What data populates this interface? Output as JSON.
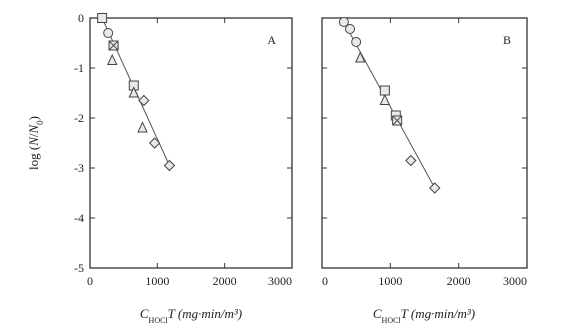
{
  "chart_data": [
    {
      "type": "scatter",
      "panel_label": "A",
      "xlabel": {
        "base": "C",
        "sub": "HOCl",
        "rest": "T (mg·min/m³)"
      },
      "ylabel": {
        "pre": "log (",
        "num": "N",
        "slash": "/",
        "den": "N",
        "sub": "0",
        "post": ")"
      },
      "xlim": [
        0,
        3000
      ],
      "ylim": [
        -5,
        0
      ],
      "xticks": [
        0,
        1000,
        2000,
        3000
      ],
      "yticks": [
        0,
        -1,
        -2,
        -3,
        -4,
        -5
      ],
      "xtick_labels": [
        "0",
        "1000",
        "2000",
        "3000"
      ],
      "ytick_labels": [
        "0",
        "-1",
        "-2",
        "-3",
        "-4",
        "-5"
      ],
      "series": [
        {
          "marker": "square",
          "points": [
            [
              180,
              0.0
            ],
            [
              350,
              -0.55
            ],
            [
              650,
              -1.35
            ]
          ]
        },
        {
          "marker": "circle",
          "points": [
            [
              270,
              -0.3
            ],
            [
              350,
              -0.55
            ]
          ]
        },
        {
          "marker": "cross-square",
          "points": [
            [
              350,
              -0.55
            ]
          ]
        },
        {
          "marker": "triangle",
          "points": [
            [
              330,
              -0.85
            ],
            [
              650,
              -1.5
            ],
            [
              780,
              -2.2
            ]
          ]
        },
        {
          "marker": "diamond",
          "points": [
            [
              800,
              -1.65
            ],
            [
              960,
              -2.5
            ],
            [
              1180,
              -2.95
            ]
          ]
        }
      ],
      "fit_line": {
        "x": [
          180,
          1180
        ],
        "y": [
          0.0,
          -2.95
        ]
      }
    },
    {
      "type": "scatter",
      "panel_label": "B",
      "xlabel": {
        "base": "C",
        "sub": "HOCl",
        "rest": "T (mg·min/m³)"
      },
      "xlim": [
        0,
        3000
      ],
      "ylim": [
        -5,
        0
      ],
      "xticks": [
        0,
        1000,
        2000,
        3000
      ],
      "xtick_labels": [
        "0",
        "1000",
        "2000",
        "3000"
      ],
      "series": [
        {
          "marker": "circle",
          "points": [
            [
              320,
              -0.08
            ],
            [
              410,
              -0.22
            ],
            [
              500,
              -0.48
            ]
          ]
        },
        {
          "marker": "triangle",
          "points": [
            [
              560,
              -0.8
            ],
            [
              920,
              -1.65
            ]
          ]
        },
        {
          "marker": "square",
          "points": [
            [
              920,
              -1.45
            ],
            [
              1080,
              -1.95
            ]
          ]
        },
        {
          "marker": "cross-square",
          "points": [
            [
              1100,
              -2.05
            ]
          ]
        },
        {
          "marker": "diamond",
          "points": [
            [
              1300,
              -2.85
            ],
            [
              1650,
              -3.4
            ]
          ]
        }
      ],
      "fit_line": {
        "x": [
          320,
          1650
        ],
        "y": [
          -0.08,
          -3.4
        ]
      }
    }
  ]
}
